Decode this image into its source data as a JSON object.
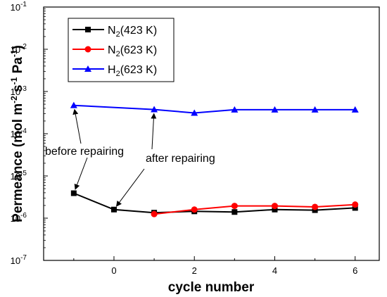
{
  "chart_data": {
    "type": "line",
    "xlabel": "cycle number",
    "ylabel": "Permeance (mol m-2 s-1 Pa-1)",
    "ylabel_parts": {
      "a": "Permeance (mol m",
      "sup1": "-2",
      "b": " s",
      "sup2": "-1",
      "c": " Pa",
      "sup3": "-1",
      "d": ")"
    },
    "xlim": [
      -1.75,
      6.6
    ],
    "ylim": [
      1e-07,
      0.1
    ],
    "yscale": "log",
    "x_ticks": [
      0,
      2,
      4,
      6
    ],
    "x_tick_labels": [
      "0",
      "2",
      "4",
      "6"
    ],
    "y_ticks": [
      1e-07,
      1e-06,
      1e-05,
      0.0001,
      0.001,
      0.01,
      0.1
    ],
    "y_tick_labels": [
      {
        "base": "10",
        "exp": "-7"
      },
      {
        "base": "10",
        "exp": "-6"
      },
      {
        "base": "10",
        "exp": "-5"
      },
      {
        "base": "10",
        "exp": "-4"
      },
      {
        "base": "10",
        "exp": "-3"
      },
      {
        "base": "10",
        "exp": "-2"
      },
      {
        "base": "10",
        "exp": "-1"
      }
    ],
    "grid": false,
    "legend_position": "top-left",
    "series": [
      {
        "name": "N2(423 K)",
        "legend": {
          "a": "N",
          "sub": "2",
          "b": "(423 K)"
        },
        "color": "#000000",
        "marker": "square",
        "x": [
          -1,
          0,
          1,
          2,
          3,
          4,
          5,
          6
        ],
        "y": [
          3.9e-06,
          1.6e-06,
          1.35e-06,
          1.45e-06,
          1.4e-06,
          1.6e-06,
          1.55e-06,
          1.75e-06
        ]
      },
      {
        "name": "N2(623 K)",
        "legend": {
          "a": "N",
          "sub": "2",
          "b": "(623 K)"
        },
        "color": "#ff0000",
        "marker": "circle",
        "x": [
          1,
          2,
          3,
          4,
          5,
          6
        ],
        "y": [
          1.25e-06,
          1.6e-06,
          1.95e-06,
          1.95e-06,
          1.85e-06,
          2.1e-06
        ]
      },
      {
        "name": "H2(623 K)",
        "legend": {
          "a": "H",
          "sub": "2",
          "b": "(623 K)"
        },
        "color": "#0000ff",
        "marker": "triangle",
        "x": [
          -1,
          1,
          2,
          3,
          4,
          5,
          6
        ],
        "y": [
          0.00047,
          0.000375,
          0.00031,
          0.00037,
          0.00037,
          0.00037,
          0.00037
        ]
      }
    ],
    "annotations": [
      {
        "text": "before repairing",
        "targets": [
          {
            "x": -1,
            "y": 0.00047
          },
          {
            "x": -1,
            "y": 3.9e-06
          }
        ]
      },
      {
        "text": "after repairing",
        "targets": [
          {
            "x": 1,
            "y": 0.000375
          },
          {
            "x": 0,
            "y": 1.6e-06
          }
        ]
      }
    ]
  }
}
